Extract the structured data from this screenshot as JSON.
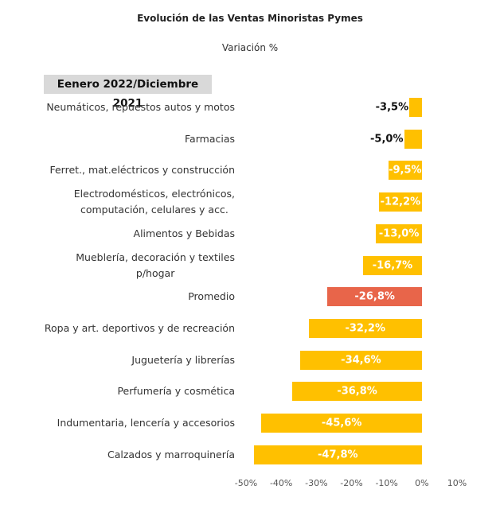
{
  "chart_data": {
    "type": "bar",
    "orientation": "horizontal",
    "title": "Evolución de las Ventas Minoristas Pymes",
    "subtitle": "Variación %",
    "period_label": "Eenero 2022/Diciembre 2021",
    "categories": [
      "Neumáticos, repuestos autos y motos",
      "Farmacias",
      "Ferret., mat.eléctricos y construcción",
      "Electrodomésticos, electrónicos,\ncomputación, celulares y acc.",
      "Alimentos y Bebidas",
      "Mueblería, decoración y textiles\np/hogar",
      "Promedio",
      "Ropa y art. deportivos y de recreación",
      "Juguetería y librerías",
      "Perfumería y cosmética",
      "Indumentaria, lencería y accesorios",
      "Calzados y marroquinería"
    ],
    "values": [
      -3.5,
      -5.0,
      -9.5,
      -12.2,
      -13.0,
      -16.7,
      -26.8,
      -32.2,
      -34.6,
      -36.8,
      -45.6,
      -47.8
    ],
    "value_labels": [
      "-3,5%",
      "-5,0%",
      "-9,5%",
      "-12,2%",
      "-13,0%",
      "-16,7%",
      "-26,8%",
      "-32,2%",
      "-34,6%",
      "-36,8%",
      "-45,6%",
      "-47,8%"
    ],
    "colors": [
      "#ffc000",
      "#ffc000",
      "#ffc000",
      "#ffc000",
      "#ffc000",
      "#ffc000",
      "#e8654a",
      "#ffc000",
      "#ffc000",
      "#ffc000",
      "#ffc000",
      "#ffc000"
    ],
    "xlim": [
      -50,
      10
    ],
    "xticks": [
      {
        "value": -50,
        "label": "-50%"
      },
      {
        "value": -40,
        "label": "-40%"
      },
      {
        "value": -30,
        "label": "-30%"
      },
      {
        "value": -20,
        "label": "-20%"
      },
      {
        "value": -10,
        "label": "-10%"
      },
      {
        "value": 0,
        "label": "0%"
      },
      {
        "value": 10,
        "label": "10%"
      }
    ],
    "grid": false
  }
}
